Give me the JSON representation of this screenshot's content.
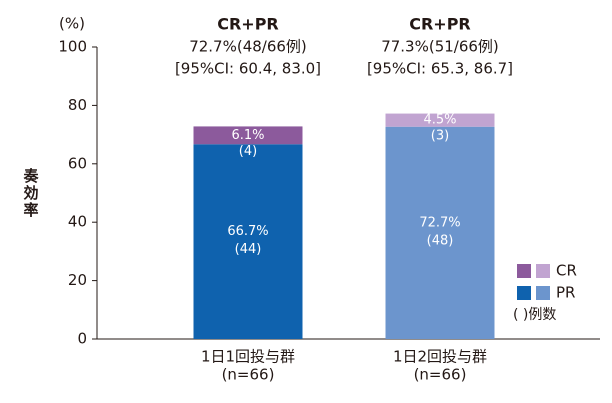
{
  "chart_data": {
    "type": "stacked-bar",
    "y_label": "奏効率",
    "y_unit": "(%)",
    "categories": [
      [
        "1日1回投与群",
        "(n=66)"
      ],
      [
        "1日2回投与群",
        "(n=66)"
      ]
    ],
    "annotations": [
      [
        "CR+PR",
        "72.7%(48/66例)",
        "[95%CI: 60.4, 83.0]"
      ],
      [
        "CR+PR",
        "77.3%(51/66例)",
        "[95%CI: 65.3, 86.7]"
      ]
    ],
    "series": [
      {
        "name": "PR",
        "colors": [
          "#0f62ae",
          "#6c95cd"
        ],
        "values": [
          66.7,
          72.7
        ],
        "value_labels": [
          "66.7%",
          "72.7%"
        ],
        "count_labels": [
          "(44)",
          "(48)"
        ]
      },
      {
        "name": "CR",
        "colors": [
          "#8c5a9c",
          "#c1a4d1"
        ],
        "values": [
          6.1,
          4.5
        ],
        "value_labels": [
          "6.1%",
          "4.5%"
        ],
        "count_labels": [
          "(4)",
          "(3)"
        ]
      }
    ],
    "legend_note": "( )例数",
    "ylim": [
      0,
      100
    ],
    "yticks": [
      0,
      20,
      40,
      60,
      80,
      100
    ]
  }
}
